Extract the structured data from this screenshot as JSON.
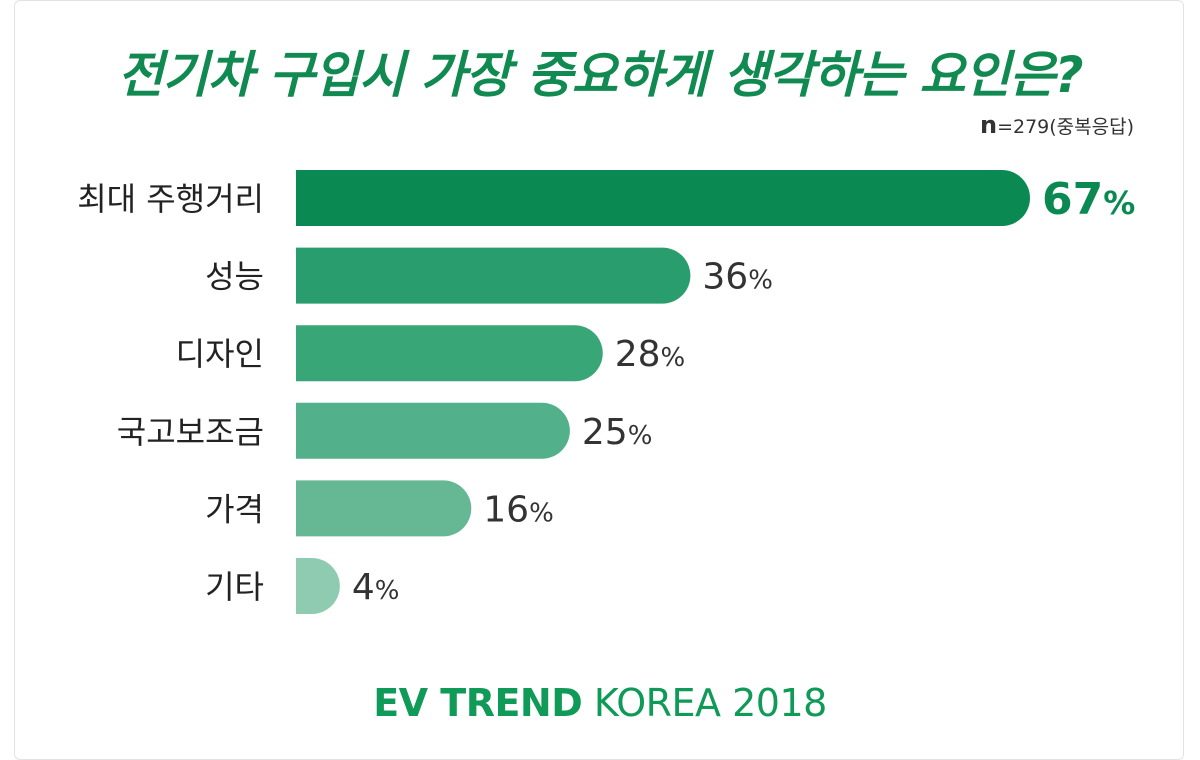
{
  "title": "전기차 구입시 가장 중요하게 생각하는 요인은?",
  "sample": {
    "n_letter": "n",
    "rest": "=279(중복응답)"
  },
  "chart_data": {
    "type": "bar",
    "orientation": "horizontal",
    "title": "전기차 구입시 가장 중요하게 생각하는 요인은?",
    "xlabel": "",
    "ylabel": "",
    "unit": "%",
    "xlim": [
      0,
      67
    ],
    "categories": [
      "최대 주행거리",
      "성능",
      "디자인",
      "국고보조금",
      "가격",
      "기타"
    ],
    "values": [
      67,
      36,
      28,
      25,
      16,
      4
    ],
    "colors": [
      "#0a8a52",
      "#2a9d6e",
      "#38a676",
      "#52b08a",
      "#66b794",
      "#8fcbb0"
    ]
  },
  "footer": {
    "strong": "EV TREND",
    "rest": " KOREA 2018"
  }
}
